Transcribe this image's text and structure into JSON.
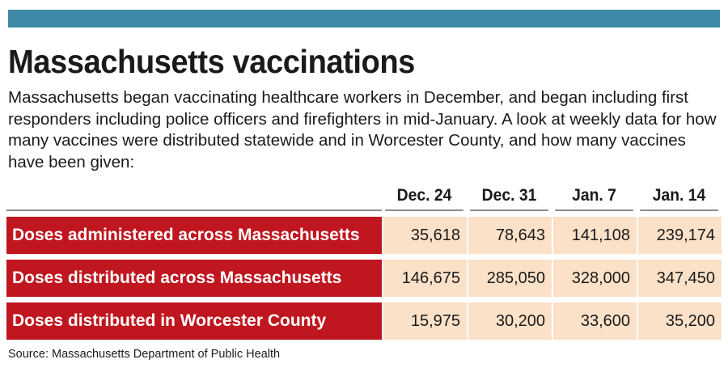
{
  "header": {
    "title": "Massachusetts vaccinations",
    "intro": "Massachusetts began vaccinating healthcare workers in December, and began including first responders including police officers and firefighters in mid-January. A look at weekly data for how many vaccines were distributed statewide and in Worcester County, and how many vaccines have been given:"
  },
  "colors": {
    "accent_bar": "#3e8aa6",
    "row_label_bg": "#c0161f",
    "cell_bg": "#fbe1c8"
  },
  "chart_data": {
    "type": "table",
    "columns": [
      "Dec. 24",
      "Dec. 31",
      "Jan. 7",
      "Jan. 14"
    ],
    "rows": [
      {
        "label": "Doses administered across Massachusetts",
        "display": [
          "35,618",
          "78,643",
          "141,108",
          "239,174"
        ],
        "values": [
          35618,
          78643,
          141108,
          239174
        ]
      },
      {
        "label": "Doses distributed across Massachusetts",
        "display": [
          "146,675",
          "285,050",
          "328,000",
          "347,450"
        ],
        "values": [
          146675,
          285050,
          328000,
          347450
        ]
      },
      {
        "label": "Doses distributed in Worcester County",
        "display": [
          "15,975",
          "30,200",
          "33,600",
          "35,200"
        ],
        "values": [
          15975,
          30200,
          33600,
          35200
        ]
      }
    ]
  },
  "footer": {
    "source": "Source: Massachusetts Department of Public Health"
  }
}
